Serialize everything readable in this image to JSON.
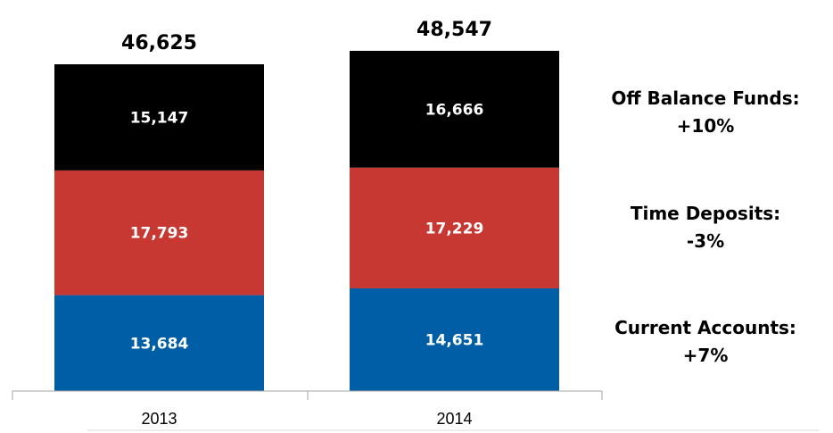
{
  "chart_data": {
    "type": "bar",
    "stacked": true,
    "categories": [
      "2013",
      "2014"
    ],
    "series": [
      {
        "name": "Current Accounts",
        "values": [
          13684,
          14651
        ],
        "labels": [
          "13,684",
          "14,651"
        ],
        "color": "#005ea6"
      },
      {
        "name": "Time Deposits",
        "values": [
          17793,
          17229
        ],
        "labels": [
          "17,793",
          "17,229"
        ],
        "color": "#c73832"
      },
      {
        "name": "Off Balance Funds",
        "values": [
          15147,
          16666
        ],
        "labels": [
          "15,147",
          "16,666"
        ],
        "color": "#000000"
      }
    ],
    "totals": [
      46625,
      48547
    ],
    "total_labels": [
      "46,625",
      "48,547"
    ],
    "annotations": [
      {
        "series": "Off Balance Funds",
        "lines": [
          "Off Balance Funds:",
          "+10%"
        ]
      },
      {
        "series": "Time Deposits",
        "lines": [
          "Time Deposits:",
          "-3%"
        ]
      },
      {
        "series": "Current Accounts",
        "lines": [
          "Current Accounts:",
          "+7%"
        ]
      }
    ],
    "title": "",
    "xlabel": "",
    "ylabel": "",
    "ylim": [
      0,
      50000
    ],
    "grid": false,
    "legend": "none"
  }
}
